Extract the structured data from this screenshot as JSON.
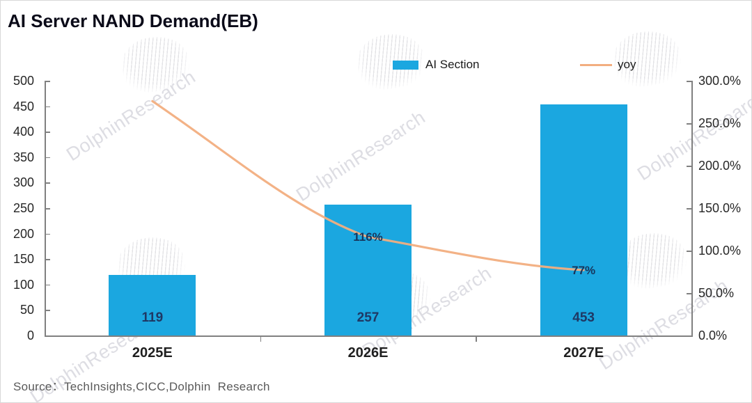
{
  "title": "AI Server NAND Demand(EB)",
  "watermark": {
    "text": "DolphinResearch"
  },
  "legend": {
    "items": [
      {
        "label": "AI Section",
        "marker": "bar-swatch-icon",
        "color": "#1BA7E0"
      },
      {
        "label": "yoy",
        "marker": "line-swatch-icon",
        "color": "#F2AE80"
      }
    ]
  },
  "source": "Source：TechInsights,CICC,Dolphin  Research",
  "colors": {
    "bar": "#1BA7E0",
    "line": "#F2AE80",
    "axis": "#808080",
    "data_label": "#1F3864",
    "axis_text": "#262626"
  },
  "chart_data": {
    "type": "bar",
    "title": "AI Server NAND Demand(EB)",
    "categories": [
      "2025E",
      "2026E",
      "2027E"
    ],
    "series": [
      {
        "name": "AI Section",
        "type": "bar",
        "axis": "left",
        "values": [
          119,
          257,
          453
        ],
        "labels": [
          "119",
          "257",
          "453"
        ]
      },
      {
        "name": "yoy",
        "type": "line",
        "axis": "right",
        "values_pct": [
          276,
          116,
          77
        ],
        "labels": [
          "",
          "116%",
          "77%"
        ]
      }
    ],
    "left_axis": {
      "min": 0,
      "max": 500,
      "step": 50,
      "ticks": [
        "500",
        "450",
        "400",
        "350",
        "300",
        "250",
        "200",
        "150",
        "100",
        "50",
        "0"
      ]
    },
    "right_axis": {
      "min": 0,
      "max": 300,
      "step": 50,
      "ticks": [
        "300.0%",
        "250.0%",
        "200.0%",
        "150.0%",
        "100.0%",
        "50.0%",
        "0.0%"
      ]
    },
    "legend_position": "top",
    "grid": false
  }
}
